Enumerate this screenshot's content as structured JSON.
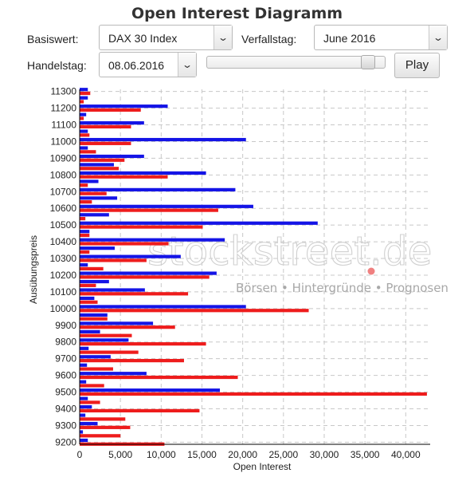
{
  "title": "Open Interest Diagramm",
  "controls": {
    "basiswert_label": "Basiswert:",
    "basiswert_value": "DAX 30 Index",
    "verfallstag_label": "Verfallstag:",
    "verfallstag_value": "June 2016",
    "handelstag_label": "Handelstag:",
    "handelstag_value": "08.06.2016",
    "play_label": "Play",
    "slider_position": 0.94
  },
  "watermark": {
    "name": "stockstreet.de",
    "tagline": "Börsen • Hintergründe • Prognosen"
  },
  "colors": {
    "calls": "#1414e6",
    "puts": "#ee1c1c",
    "grid": "#c8c8c8"
  },
  "chart_data": {
    "type": "bar",
    "orientation": "horizontal",
    "ylabel": "Ausübungspreis",
    "xlabel": "Open Interest",
    "xlim": [
      0,
      43000
    ],
    "xticks": [
      0,
      5000,
      10000,
      15000,
      20000,
      25000,
      30000,
      35000,
      40000
    ],
    "xtick_labels": [
      "0",
      "5,000",
      "10,000",
      "15,000",
      "20,000",
      "25,000",
      "30,000",
      "35,000",
      "40,000"
    ],
    "grid": true,
    "categories": [
      "9200",
      "9250",
      "9300",
      "9350",
      "9400",
      "9450",
      "9500",
      "9550",
      "9600",
      "9650",
      "9700",
      "9750",
      "9800",
      "9850",
      "9900",
      "9950",
      "10000",
      "10050",
      "10100",
      "10150",
      "10200",
      "10250",
      "10300",
      "10350",
      "10400",
      "10450",
      "10500",
      "10550",
      "10600",
      "10650",
      "10700",
      "10750",
      "10800",
      "10850",
      "10900",
      "10950",
      "11000",
      "11050",
      "11100",
      "11150",
      "11200",
      "11250",
      "11300"
    ],
    "category_labels": [
      "9200",
      "",
      "9300",
      "",
      "9400",
      "",
      "9500",
      "",
      "9600",
      "",
      "9700",
      "",
      "9800",
      "",
      "9900",
      "",
      "10000",
      "",
      "10100",
      "",
      "10200",
      "",
      "10300",
      "",
      "10400",
      "",
      "10500",
      "",
      "10600",
      "",
      "10700",
      "",
      "10800",
      "",
      "10900",
      "",
      "11000",
      "",
      "11100",
      "",
      "11200",
      "",
      "11300"
    ],
    "series": [
      {
        "values": [
          1000,
          400,
          2200,
          700,
          1500,
          1000,
          17200,
          800,
          8200,
          900,
          3800,
          1100,
          6000,
          2500,
          9000,
          3400,
          20400,
          1800,
          8000,
          3600,
          16800,
          1000,
          12400,
          4300,
          17800,
          1200,
          29200,
          3600,
          21300,
          4600,
          19100,
          2300,
          15500,
          4200,
          7900,
          1000,
          20400,
          1000,
          7900,
          800,
          10800,
          1000,
          1000
        ]
      },
      {
        "values": [
          10400,
          5000,
          6200,
          5600,
          14700,
          2500,
          42600,
          3000,
          19400,
          4100,
          12800,
          7200,
          15500,
          6400,
          11700,
          3400,
          28100,
          2200,
          13300,
          2000,
          15900,
          2900,
          8200,
          1200,
          10900,
          1200,
          15100,
          700,
          17000,
          1500,
          3300,
          1000,
          10800,
          4800,
          5500,
          2000,
          6300,
          1200,
          6300,
          500,
          7500,
          500,
          1300
        ]
      }
    ]
  }
}
